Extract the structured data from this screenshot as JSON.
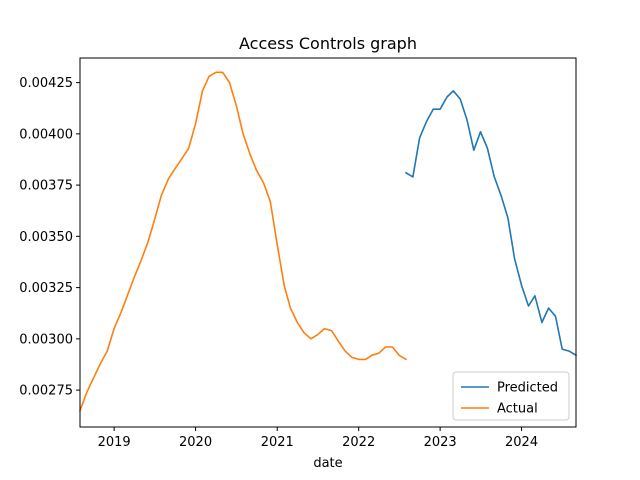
{
  "chart_data": {
    "type": "line",
    "title": "Access Controls graph",
    "xlabel": "date",
    "ylabel": "",
    "xlim": [
      "2018-08-01",
      "2024-09-01"
    ],
    "ylim": [
      0.00257,
      0.00437
    ],
    "x_ticks": [
      "2019",
      "2020",
      "2021",
      "2022",
      "2023",
      "2024"
    ],
    "y_ticks": [
      "0.00275",
      "0.00300",
      "0.00325",
      "0.00350",
      "0.00375",
      "0.00400",
      "0.00425"
    ],
    "grid": false,
    "legend_position": "lower-right",
    "series": [
      {
        "name": "Predicted",
        "color": "#1f77b4",
        "points": [
          [
            "2022-08-01",
            0.00381
          ],
          [
            "2022-09-01",
            0.00379
          ],
          [
            "2022-10-01",
            0.00398
          ],
          [
            "2022-11-01",
            0.00406
          ],
          [
            "2022-12-01",
            0.00412
          ],
          [
            "2023-01-01",
            0.00412
          ],
          [
            "2023-02-01",
            0.00418
          ],
          [
            "2023-03-01",
            0.00421
          ],
          [
            "2023-04-01",
            0.00417
          ],
          [
            "2023-05-01",
            0.00407
          ],
          [
            "2023-06-01",
            0.00392
          ],
          [
            "2023-07-01",
            0.00401
          ],
          [
            "2023-08-01",
            0.00393
          ],
          [
            "2023-09-01",
            0.00379
          ],
          [
            "2023-10-01",
            0.0037
          ],
          [
            "2023-11-01",
            0.00359
          ],
          [
            "2023-12-01",
            0.00339
          ],
          [
            "2024-01-01",
            0.00326
          ],
          [
            "2024-02-01",
            0.00316
          ],
          [
            "2024-03-01",
            0.00321
          ],
          [
            "2024-04-01",
            0.00308
          ],
          [
            "2024-05-01",
            0.00315
          ],
          [
            "2024-06-01",
            0.00311
          ],
          [
            "2024-07-01",
            0.00295
          ],
          [
            "2024-08-01",
            0.00294
          ],
          [
            "2024-09-01",
            0.00292
          ]
        ]
      },
      {
        "name": "Actual",
        "color": "#ff7f0e",
        "points": [
          [
            "2018-08-01",
            0.00265
          ],
          [
            "2018-09-01",
            0.00274
          ],
          [
            "2018-10-01",
            0.00281
          ],
          [
            "2018-11-01",
            0.00288
          ],
          [
            "2018-12-01",
            0.00294
          ],
          [
            "2019-01-01",
            0.00305
          ],
          [
            "2019-02-01",
            0.00313
          ],
          [
            "2019-03-01",
            0.00321
          ],
          [
            "2019-04-01",
            0.0033
          ],
          [
            "2019-05-01",
            0.00338
          ],
          [
            "2019-06-01",
            0.00347
          ],
          [
            "2019-07-01",
            0.00358
          ],
          [
            "2019-08-01",
            0.0037
          ],
          [
            "2019-09-01",
            0.00378
          ],
          [
            "2019-10-01",
            0.00383
          ],
          [
            "2019-11-01",
            0.00388
          ],
          [
            "2019-12-01",
            0.00393
          ],
          [
            "2020-01-01",
            0.00405
          ],
          [
            "2020-02-01",
            0.00421
          ],
          [
            "2020-03-01",
            0.00428
          ],
          [
            "2020-04-01",
            0.0043
          ],
          [
            "2020-05-01",
            0.0043
          ],
          [
            "2020-06-01",
            0.00425
          ],
          [
            "2020-07-01",
            0.00414
          ],
          [
            "2020-08-01",
            0.004
          ],
          [
            "2020-09-01",
            0.0039
          ],
          [
            "2020-10-01",
            0.00382
          ],
          [
            "2020-11-01",
            0.00376
          ],
          [
            "2020-12-01",
            0.00367
          ],
          [
            "2021-01-01",
            0.00346
          ],
          [
            "2021-02-01",
            0.00326
          ],
          [
            "2021-03-01",
            0.00315
          ],
          [
            "2021-04-01",
            0.00308
          ],
          [
            "2021-05-01",
            0.00303
          ],
          [
            "2021-06-01",
            0.003
          ],
          [
            "2021-07-01",
            0.00302
          ],
          [
            "2021-08-01",
            0.00305
          ],
          [
            "2021-09-01",
            0.00304
          ],
          [
            "2021-10-01",
            0.00299
          ],
          [
            "2021-11-01",
            0.00294
          ],
          [
            "2021-12-01",
            0.00291
          ],
          [
            "2022-01-01",
            0.0029
          ],
          [
            "2022-02-01",
            0.0029
          ],
          [
            "2022-03-01",
            0.00292
          ],
          [
            "2022-04-01",
            0.00293
          ],
          [
            "2022-05-01",
            0.00296
          ],
          [
            "2022-06-01",
            0.00296
          ],
          [
            "2022-07-01",
            0.00292
          ],
          [
            "2022-08-01",
            0.0029
          ]
        ]
      }
    ]
  }
}
